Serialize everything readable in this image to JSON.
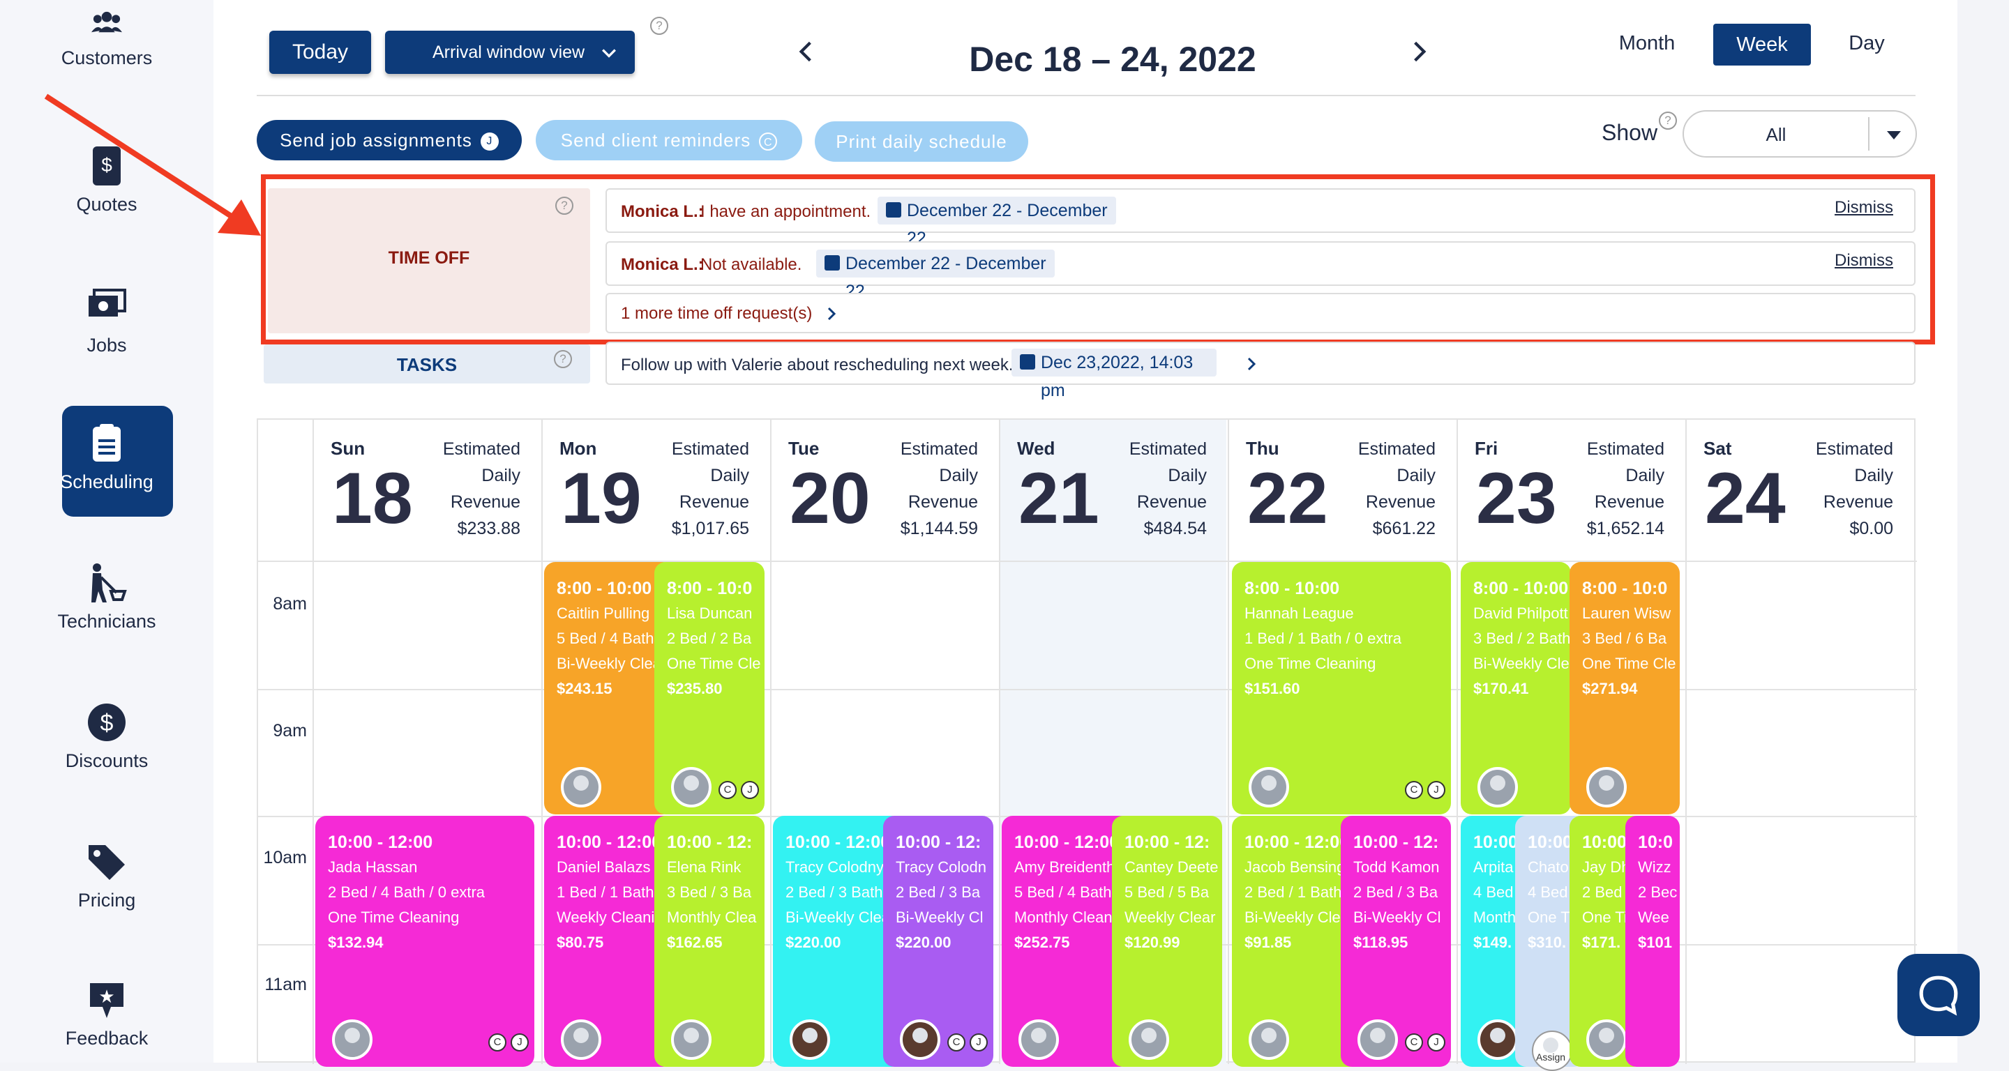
{
  "sidebar": {
    "items": [
      {
        "label": "Customers",
        "icon": "customers-icon"
      },
      {
        "label": "Quotes",
        "icon": "quotes-icon"
      },
      {
        "label": "Jobs",
        "icon": "jobs-icon"
      },
      {
        "label": "Scheduling",
        "icon": "scheduling-icon",
        "active": true
      },
      {
        "label": "Technicians",
        "icon": "technicians-icon"
      },
      {
        "label": "Discounts",
        "icon": "discounts-icon"
      },
      {
        "label": "Pricing",
        "icon": "pricing-icon"
      },
      {
        "label": "Feedback",
        "icon": "feedback-icon"
      }
    ]
  },
  "toolbar": {
    "today_label": "Today",
    "arrival_label": "Arrival window view",
    "date_range": "Dec 18 – 24, 2022",
    "views": [
      "Month",
      "Week",
      "Day"
    ],
    "active_view": "Week",
    "send_job_label": "Send job assignments",
    "send_job_badge": "J",
    "send_client_label": "Send client reminders",
    "send_client_badge": "C",
    "print_label": "Print daily schedule",
    "show_label": "Show",
    "show_value": "All"
  },
  "timeoff": {
    "title": "TIME OFF",
    "requests": [
      {
        "name": "Monica L.:",
        "reason": "I have an appointment.",
        "dates": "December 22 - December 22",
        "dismiss": "Dismiss"
      },
      {
        "name": "Monica L.:",
        "reason": "Not available.",
        "dates": "December 22 - December 22",
        "dismiss": "Dismiss"
      }
    ],
    "more": "1 more time off request(s)"
  },
  "tasks": {
    "title": "TASKS",
    "text": "Follow up with Valerie about rescheduling next week.",
    "date": "Dec 23,2022, 14:03 pm"
  },
  "calendar": {
    "rev_label_1": "Estimated",
    "rev_label_2": "Daily",
    "rev_label_3": "Revenue",
    "days": [
      {
        "name": "Sun",
        "num": "18",
        "revenue": "$233.88"
      },
      {
        "name": "Mon",
        "num": "19",
        "revenue": "$1,017.65"
      },
      {
        "name": "Tue",
        "num": "20",
        "revenue": "$1,144.59"
      },
      {
        "name": "Wed",
        "num": "21",
        "revenue": "$484.54"
      },
      {
        "name": "Thu",
        "num": "22",
        "revenue": "$661.22"
      },
      {
        "name": "Fri",
        "num": "23",
        "revenue": "$1,652.14"
      },
      {
        "name": "Sat",
        "num": "24",
        "revenue": "$0.00"
      }
    ],
    "hours": [
      "8am",
      "9am",
      "10am",
      "11am"
    ]
  },
  "jobs": [
    {
      "time": "8:00 - 10:00",
      "name": "Caitlin Pulling",
      "rooms": "5 Bed / 4 Bath",
      "type": "Bi-Weekly Clea",
      "price": "$243.15",
      "color": "#f7a428"
    },
    {
      "time": "8:00 - 10:0",
      "name": "Lisa Duncan",
      "rooms": "2 Bed / 2 Ba",
      "type": "One Time Cle",
      "price": "$235.80",
      "color": "#b7f02e"
    },
    {
      "time": "8:00 - 10:00",
      "name": "Hannah League",
      "rooms": "1 Bed / 1 Bath / 0 extra",
      "type": "One Time Cleaning",
      "price": "$151.60",
      "color": "#b7f02e"
    },
    {
      "time": "8:00 - 10:00",
      "name": "David Philpott",
      "rooms": "3 Bed / 2 Bath",
      "type": "Bi-Weekly Clea",
      "price": "$170.41",
      "color": "#b7f02e"
    },
    {
      "time": "8:00 - 10:0",
      "name": "Lauren Wisw",
      "rooms": "3 Bed / 6 Ba",
      "type": "One Time Cle",
      "price": "$271.94",
      "color": "#f7a428"
    },
    {
      "time": "10:00 - 12:00",
      "name": "Jada Hassan",
      "rooms": "2 Bed / 4 Bath / 0 extra",
      "type": "One Time Cleaning",
      "price": "$132.94",
      "color": "#f52ad6"
    },
    {
      "time": "10:00 - 12:00",
      "name": "Daniel Balazs",
      "rooms": "1 Bed / 1 Bath",
      "type": "Weekly Cleanin",
      "price": "$80.75",
      "color": "#f52ad6"
    },
    {
      "time": "10:00 - 12:",
      "name": "Elena Rink",
      "rooms": "3 Bed / 3 Ba",
      "type": "Monthly Clea",
      "price": "$162.65",
      "color": "#b7f02e"
    },
    {
      "time": "10:00 - 12:00",
      "name": "Tracy Colodny",
      "rooms": "2 Bed / 3 Bath",
      "type": "Bi-Weekly Clea",
      "price": "$220.00",
      "color": "#33f2f2"
    },
    {
      "time": "10:00 - 12:",
      "name": "Tracy Colodn",
      "rooms": "2 Bed / 3 Ba",
      "type": "Bi-Weekly Cl",
      "price": "$220.00",
      "color": "#a95cf2"
    },
    {
      "time": "10:00 - 12:00",
      "name": "Amy Breidenthe",
      "rooms": "5 Bed / 4 Bath",
      "type": "Monthly Cleani",
      "price": "$252.75",
      "color": "#f52ad6"
    },
    {
      "time": "10:00 - 12:",
      "name": "Cantey Deete",
      "rooms": "5 Bed / 5 Ba",
      "type": "Weekly Clear",
      "price": "$120.99",
      "color": "#b7f02e"
    },
    {
      "time": "10:00 - 12:00",
      "name": "Jacob Bensinge",
      "rooms": "2 Bed / 1 Bath",
      "type": "Bi-Weekly Clea",
      "price": "$91.85",
      "color": "#b7f02e"
    },
    {
      "time": "10:00 - 12:",
      "name": "Todd Kamon",
      "rooms": "2 Bed / 3 Ba",
      "type": "Bi-Weekly Cl",
      "price": "$118.95",
      "color": "#f52ad6"
    },
    {
      "time": "10:00",
      "name": "Arpita",
      "rooms": "4 Bed",
      "type": "Month",
      "price": "$149.",
      "color": "#33f2f2"
    },
    {
      "time": "10:00",
      "name": "Chato",
      "rooms": "4 Bed",
      "type": "One T",
      "price": "$310.",
      "color": "#cfe0f5"
    },
    {
      "time": "10:00",
      "name": "Jay Dh",
      "rooms": "2 Bed",
      "type": "One Ti",
      "price": "$171.",
      "color": "#b7f02e"
    },
    {
      "time": "10:0",
      "name": "Wizz",
      "rooms": "2 Bec",
      "type": "Wee",
      "price": "$101",
      "color": "#f52ad6"
    }
  ],
  "assign_label": "Assign"
}
